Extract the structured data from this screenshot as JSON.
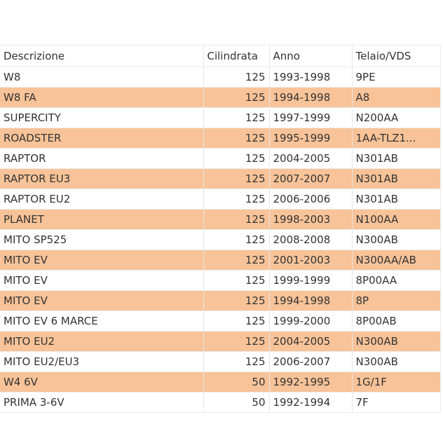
{
  "table": {
    "headers": [
      "Descrizione",
      "Cilindrata",
      "Anno",
      "Telaio/VDS"
    ],
    "rows": [
      [
        "W8",
        "125",
        "1993-1998",
        "9PE"
      ],
      [
        "W8 FA",
        "125",
        "1994-1998",
        "A8"
      ],
      [
        "SUPERCITY",
        "125",
        "1997-1999",
        "N200AA"
      ],
      [
        "ROADSTER",
        "125",
        "1995-1999",
        "1AA-TLZ1..."
      ],
      [
        "RAPTOR",
        "125",
        "2004-2005",
        "N301AB"
      ],
      [
        "RAPTOR EU3",
        "125",
        "2007-2007",
        "N301AB"
      ],
      [
        "RAPTOR EU2",
        "125",
        "2006-2006",
        "N301AB"
      ],
      [
        "PLANET",
        "125",
        "1998-2003",
        "N100AA"
      ],
      [
        "MITO SP525",
        "125",
        "2008-2008",
        "N300AB"
      ],
      [
        "MITO EV",
        "125",
        "2001-2003",
        "N300AA/AB"
      ],
      [
        "MITO EV",
        "125",
        "1999-1999",
        "8P00AA"
      ],
      [
        "MITO EV",
        "125",
        "1994-1998",
        "8P"
      ],
      [
        "MITO EV 6 MARCE",
        "125",
        "1999-2000",
        "8P00AB"
      ],
      [
        "MITO EU2",
        "125",
        "2004-2005",
        "N300AB"
      ],
      [
        "MITO EU2/EU3",
        "125",
        "2006-2007",
        "N300AB"
      ],
      [
        "W4 6V",
        "50",
        "1992-1995",
        "1G/1F"
      ],
      [
        "PRIMA 3-6V",
        "50",
        "1992-1994",
        "7F"
      ]
    ]
  },
  "colors": {
    "stripe": "#f8c398",
    "background": "#ffffff",
    "text": "#333333"
  }
}
